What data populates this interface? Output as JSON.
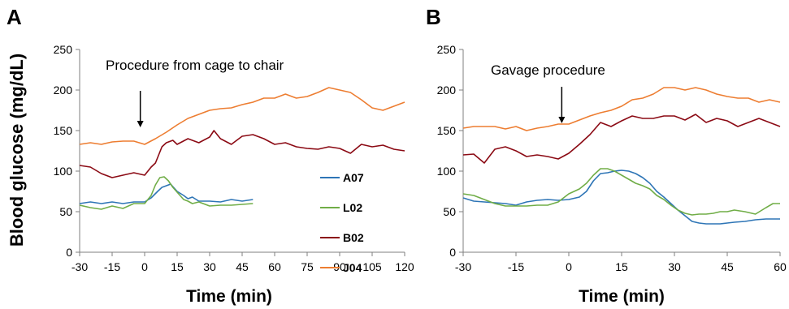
{
  "figure": {
    "ylabel": "Blood glucose (mg/dL)",
    "legend": {
      "position": "right of panel A plot area",
      "entries": [
        {
          "name": "A07",
          "color": "#2E75B6"
        },
        {
          "name": "L02",
          "color": "#70AD47"
        },
        {
          "name": "B02",
          "color": "#8B0A14"
        },
        {
          "name": "J04",
          "color": "#ED7D31"
        }
      ]
    }
  },
  "chart_data": [
    {
      "type": "line",
      "panel_label": "A",
      "annotation": "Procedure from cage to chair",
      "arrow_x": -2,
      "xlabel": "Time (min)",
      "ylabel": "Blood glucose (mg/dL)",
      "xlim": [
        -30,
        120
      ],
      "ylim": [
        0,
        250
      ],
      "xticks": [
        -30,
        -15,
        0,
        15,
        30,
        45,
        60,
        75,
        90,
        105,
        120
      ],
      "yticks": [
        0,
        50,
        100,
        150,
        200,
        250
      ],
      "grid": false,
      "series": [
        {
          "name": "A07",
          "color": "#2E75B6",
          "x": [
            -30,
            -25,
            -20,
            -15,
            -10,
            -5,
            0,
            3,
            6,
            8,
            10,
            12,
            15,
            18,
            20,
            22,
            25,
            30,
            35,
            40,
            45,
            50
          ],
          "y": [
            60,
            62,
            60,
            62,
            60,
            62,
            62,
            67,
            75,
            80,
            82,
            84,
            75,
            70,
            66,
            68,
            63,
            63,
            62,
            65,
            63,
            65
          ]
        },
        {
          "name": "L02",
          "color": "#70AD47",
          "x": [
            -30,
            -25,
            -20,
            -15,
            -10,
            -5,
            0,
            3,
            5,
            7,
            9,
            11,
            13,
            15,
            18,
            20,
            22,
            25,
            30,
            35,
            40,
            45,
            50
          ],
          "y": [
            58,
            55,
            53,
            57,
            54,
            60,
            60,
            70,
            83,
            92,
            93,
            88,
            80,
            74,
            65,
            63,
            60,
            62,
            57,
            58,
            58,
            59,
            60
          ]
        },
        {
          "name": "B02",
          "color": "#8B0A14",
          "x": [
            -30,
            -25,
            -20,
            -15,
            -10,
            -5,
            0,
            3,
            5,
            8,
            10,
            13,
            15,
            20,
            25,
            30,
            32,
            35,
            40,
            45,
            50,
            55,
            60,
            65,
            70,
            75,
            80,
            85,
            90,
            95,
            100,
            105,
            110,
            115,
            120
          ],
          "y": [
            107,
            105,
            97,
            92,
            95,
            98,
            95,
            105,
            110,
            130,
            135,
            138,
            133,
            140,
            135,
            142,
            150,
            140,
            133,
            143,
            145,
            140,
            133,
            135,
            130,
            128,
            127,
            130,
            128,
            122,
            133,
            130,
            132,
            127,
            125
          ]
        },
        {
          "name": "J04",
          "color": "#ED7D31",
          "x": [
            -30,
            -25,
            -20,
            -15,
            -10,
            -5,
            0,
            5,
            10,
            15,
            20,
            25,
            30,
            35,
            40,
            45,
            50,
            55,
            60,
            65,
            70,
            75,
            80,
            85,
            90,
            95,
            100,
            105,
            110,
            115,
            120
          ],
          "y": [
            133,
            135,
            133,
            136,
            137,
            137,
            133,
            140,
            148,
            157,
            165,
            170,
            175,
            177,
            178,
            182,
            185,
            190,
            190,
            195,
            190,
            192,
            197,
            203,
            200,
            197,
            188,
            178,
            175,
            180,
            185
          ]
        }
      ]
    },
    {
      "type": "line",
      "panel_label": "B",
      "annotation": "Gavage procedure",
      "arrow_x": -2,
      "xlabel": "Time (min)",
      "ylabel": "Blood glucose (mg/dL)",
      "xlim": [
        -30,
        60
      ],
      "ylim": [
        0,
        250
      ],
      "xticks": [
        -30,
        -15,
        0,
        15,
        30,
        45,
        60
      ],
      "yticks": [
        0,
        50,
        100,
        150,
        200,
        250
      ],
      "grid": false,
      "series": [
        {
          "name": "A07",
          "color": "#2E75B6",
          "x": [
            -30,
            -27,
            -24,
            -21,
            -18,
            -15,
            -12,
            -9,
            -6,
            -3,
            0,
            3,
            5,
            7,
            9,
            11,
            13,
            15,
            17,
            19,
            21,
            23,
            25,
            27,
            29,
            31,
            33,
            35,
            37,
            39,
            41,
            43,
            45,
            47,
            50,
            53,
            56,
            60
          ],
          "y": [
            67,
            63,
            62,
            61,
            60,
            58,
            62,
            64,
            65,
            64,
            65,
            68,
            75,
            88,
            97,
            98,
            100,
            101,
            100,
            97,
            92,
            85,
            75,
            68,
            60,
            52,
            45,
            38,
            36,
            35,
            35,
            35,
            36,
            37,
            38,
            40,
            41,
            41
          ]
        },
        {
          "name": "L02",
          "color": "#70AD47",
          "x": [
            -30,
            -27,
            -24,
            -21,
            -18,
            -15,
            -12,
            -9,
            -6,
            -3,
            0,
            3,
            5,
            7,
            9,
            11,
            13,
            15,
            17,
            19,
            21,
            23,
            25,
            27,
            29,
            31,
            33,
            35,
            37,
            39,
            41,
            43,
            45,
            47,
            50,
            53,
            56,
            58,
            60
          ],
          "y": [
            72,
            70,
            65,
            60,
            57,
            57,
            57,
            58,
            58,
            62,
            72,
            78,
            85,
            95,
            103,
            103,
            100,
            95,
            90,
            85,
            82,
            78,
            70,
            65,
            58,
            52,
            48,
            46,
            47,
            47,
            48,
            50,
            50,
            52,
            50,
            47,
            55,
            60,
            60
          ]
        },
        {
          "name": "B02",
          "color": "#8B0A14",
          "x": [
            -30,
            -27,
            -24,
            -21,
            -18,
            -15,
            -12,
            -9,
            -6,
            -3,
            0,
            3,
            6,
            9,
            12,
            15,
            18,
            21,
            24,
            27,
            30,
            33,
            36,
            39,
            42,
            45,
            48,
            51,
            54,
            57,
            60
          ],
          "y": [
            120,
            121,
            110,
            127,
            130,
            125,
            118,
            120,
            118,
            115,
            122,
            133,
            145,
            160,
            155,
            162,
            168,
            165,
            165,
            168,
            168,
            163,
            170,
            160,
            165,
            162,
            155,
            160,
            165,
            160,
            155
          ]
        },
        {
          "name": "J04",
          "color": "#ED7D31",
          "x": [
            -30,
            -27,
            -24,
            -21,
            -18,
            -15,
            -12,
            -9,
            -6,
            -3,
            0,
            3,
            6,
            9,
            12,
            15,
            18,
            21,
            24,
            27,
            30,
            33,
            36,
            39,
            42,
            45,
            48,
            51,
            54,
            57,
            60
          ],
          "y": [
            153,
            155,
            155,
            155,
            152,
            155,
            150,
            153,
            155,
            158,
            158,
            163,
            168,
            172,
            175,
            180,
            188,
            190,
            195,
            203,
            203,
            200,
            203,
            200,
            195,
            192,
            190,
            190,
            185,
            188,
            185
          ]
        }
      ]
    }
  ]
}
